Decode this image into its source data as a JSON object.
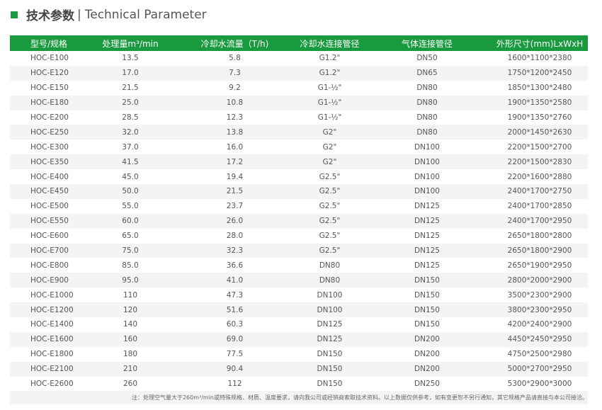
{
  "title": {
    "cn": "技术参数",
    "sep": "|",
    "en": "Technical Parameter"
  },
  "colors": {
    "accent": "#1a9a3e",
    "stripe": "#f2f5f4"
  },
  "table": {
    "headers": [
      "型号/规格",
      "处理量m³/min",
      "冷却水流量（T/h)",
      "冷却水连接管径",
      "气体连接管径",
      "外形尺寸(mm)LxWxH"
    ],
    "rows": [
      [
        "HOC-E100",
        "13.5",
        "5.8",
        "G1.2\"",
        "DN50",
        "1600*1100*2380"
      ],
      [
        "HOC-E120",
        "17.0",
        "7.3",
        "G1.2\"",
        "DN65",
        "1750*1200*2450"
      ],
      [
        "HOC-E150",
        "21.5",
        "9.2",
        "G1-½\"",
        "DN80",
        "1850*1300*2480"
      ],
      [
        "HOC-E180",
        "25.0",
        "10.8",
        "G1-½\"",
        "DN80",
        "1900*1350*2580"
      ],
      [
        "HOC-E200",
        "28.5",
        "12.3",
        "G1-½\"",
        "DN80",
        "1900*1350*2760"
      ],
      [
        "HOC-E250",
        "32.0",
        "13.8",
        "G2\"",
        "DN80",
        "2000*1450*2630"
      ],
      [
        "HOC-E300",
        "37.0",
        "16.0",
        "G2\"",
        "DN100",
        "2200*1500*2700"
      ],
      [
        "HOC-E350",
        "41.5",
        "17.2",
        "G2\"",
        "DN100",
        "2200*1500*2830"
      ],
      [
        "HOC-E400",
        "45.0",
        "19.4",
        "G2.5\"",
        "DN100",
        "2200*1600*2880"
      ],
      [
        "HOC-E450",
        "50.0",
        "21.5",
        "G2.5\"",
        "DN100",
        "2400*1700*2750"
      ],
      [
        "HOC-E500",
        "55.0",
        "23.7",
        "G2.5\"",
        "DN125",
        "2400*1700*2850"
      ],
      [
        "HOC-E550",
        "60.0",
        "26.0",
        "G2.5\"",
        "DN125",
        "2400*1700*2950"
      ],
      [
        "HOC-E600",
        "65.0",
        "28.0",
        "G2.5\"",
        "DN125",
        "2650*1800*2800"
      ],
      [
        "HOC-E700",
        "75.0",
        "32.3",
        "G2.5\"",
        "DN125",
        "2650*1800*2900"
      ],
      [
        "HOC-E800",
        "85.0",
        "36.6",
        "DN80",
        "DN125",
        "2650*1900*2950"
      ],
      [
        "HOC-E900",
        "95.0",
        "41.0",
        "DN80",
        "DN150",
        "2800*2000*2900"
      ],
      [
        "HOC-E1000",
        "110",
        "47.3",
        "DN100",
        "DN150",
        "3500*2300*2900"
      ],
      [
        "HOC-E1200",
        "120",
        "51.6",
        "DN100",
        "DN150",
        "3800*2300*2950"
      ],
      [
        "HOC-E1400",
        "140",
        "60.3",
        "DN125",
        "DN150",
        "4200*2400*2900"
      ],
      [
        "HOC-E1600",
        "160",
        "69.0",
        "DN125",
        "DN200",
        "4450*2450*2950"
      ],
      [
        "HOC-E1800",
        "180",
        "77.5",
        "DN150",
        "DN200",
        "4750*2500*2980"
      ],
      [
        "HOC-E2100",
        "210",
        "90.4",
        "DN150",
        "DN200",
        "5000*2700*2950"
      ],
      [
        "HOC-E2600",
        "260",
        "112",
        "DN150",
        "DN250",
        "5300*2900*3000"
      ]
    ]
  },
  "note": "注：处理空气量大于260m³/min或特殊规格、材质、温度要求，请向我公司或经销商索取技术资料。以上数据仅供参考，如有变更恕不另行通知，其它规格产品请直接与本公司接洽。"
}
